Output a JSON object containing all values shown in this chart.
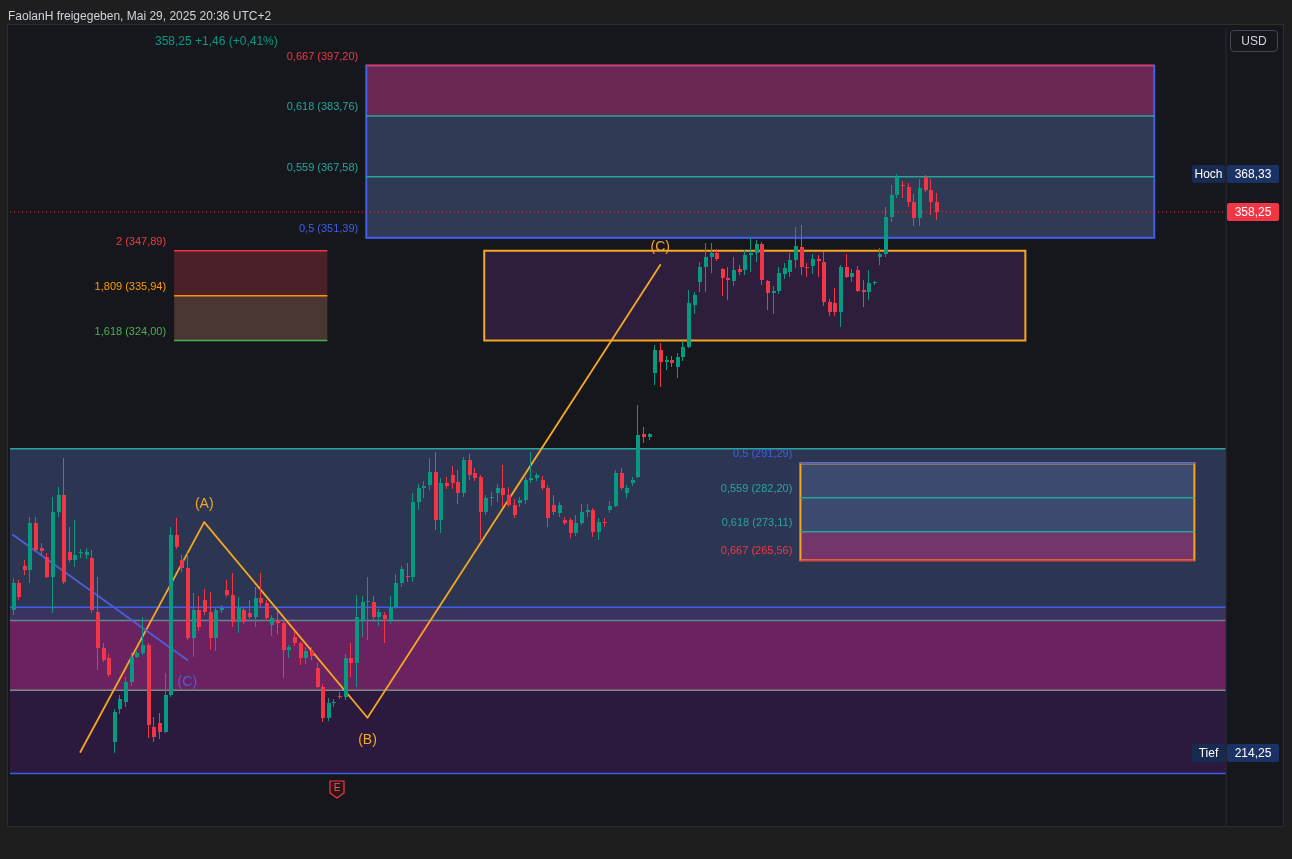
{
  "chart_data": {
    "type": "candlestick",
    "title": "FaolanH freigegeben, Mai 29, 2025 20:36 UTC+2",
    "categories": [
      null,
      null,
      null,
      null,
      null,
      null,
      null,
      null,
      null,
      null,
      null,
      null,
      null,
      null,
      null,
      null,
      null,
      null,
      null,
      null,
      null,
      null,
      null,
      null,
      null,
      null,
      null,
      null,
      null,
      null,
      null,
      null,
      null,
      null,
      null,
      null,
      null,
      null,
      null,
      null,
      null,
      null,
      null,
      null,
      null,
      null,
      null,
      null,
      null,
      null,
      null,
      null,
      null,
      null,
      null,
      null,
      null,
      null,
      null,
      null,
      null,
      null,
      null,
      null,
      null,
      null,
      null,
      null,
      null,
      null,
      null,
      null,
      null,
      null,
      null,
      null,
      null,
      null,
      null,
      null,
      null,
      null,
      null,
      null,
      null,
      null,
      null,
      null,
      null,
      null,
      null,
      null,
      null,
      null,
      null,
      null,
      null,
      null,
      null,
      null,
      null,
      null,
      null,
      null,
      null,
      null,
      null,
      null,
      null,
      null,
      null,
      null,
      null,
      null,
      null,
      null,
      null,
      null,
      null,
      null,
      null,
      null,
      null,
      null,
      null,
      null,
      null,
      null,
      null,
      null,
      null,
      null,
      null,
      null,
      null,
      null,
      null,
      null,
      null,
      null,
      null,
      null,
      null,
      null,
      null,
      null,
      null,
      null,
      null,
      null,
      null,
      null,
      null,
      null,
      null,
      null,
      null,
      null,
      null,
      null,
      null,
      null,
      null,
      null,
      null,
      null,
      null,
      null,
      null,
      null,
      null,
      null,
      null,
      null,
      null,
      null,
      null,
      null,
      null,
      null,
      null,
      null,
      null,
      null,
      null,
      null,
      null,
      null,
      null,
      null,
      null,
      null,
      null,
      null,
      null,
      null,
      null,
      null,
      null,
      null,
      null,
      null,
      null,
      null,
      null,
      null,
      null,
      null,
      null,
      null,
      null,
      null,
      null,
      null,
      null,
      null
    ],
    "ohlc": [
      [
        252.3,
        260.8,
        251.0,
        259.5
      ],
      [
        259.5,
        260.3,
        254.9,
        255.8
      ],
      [
        264.0,
        265.6,
        261.6,
        262.9
      ],
      [
        262.9,
        277.0,
        259.5,
        275.5
      ],
      [
        275.5,
        277.0,
        267.7,
        268.3
      ],
      [
        268.8,
        270.0,
        267.0,
        268.0
      ],
      [
        266.4,
        267.5,
        260.8,
        261.1
      ],
      [
        261.1,
        282.4,
        251.5,
        278.4
      ],
      [
        278.4,
        285.0,
        277.0,
        282.9
      ],
      [
        282.9,
        292.8,
        259.2,
        259.8
      ],
      [
        267.7,
        274.4,
        265.1,
        265.6
      ],
      [
        265.6,
        276.3,
        263.8,
        266.9
      ],
      [
        267.5,
        268.5,
        266.0,
        267.7
      ],
      [
        266.9,
        268.8,
        265.9,
        267.7
      ],
      [
        266.1,
        268.3,
        251.5,
        252.3
      ],
      [
        251.8,
        261.1,
        236.3,
        242.2
      ],
      [
        242.2,
        243.5,
        238.5,
        239.0
      ],
      [
        239.5,
        240.5,
        234.5,
        235.0
      ],
      [
        217.2,
        226.0,
        214.25,
        225.2
      ],
      [
        226.0,
        229.8,
        224.6,
        228.6
      ],
      [
        227.8,
        234.4,
        226.5,
        233.2
      ],
      [
        233.2,
        241.0,
        232.0,
        239.8
      ],
      [
        239.8,
        241.5,
        239.5,
        240.9
      ],
      [
        240.9,
        250.5,
        240.3,
        243.0
      ],
      [
        243.0,
        243.5,
        218.2,
        221.8
      ],
      [
        221.2,
        223.8,
        217.2,
        218.6
      ],
      [
        222.3,
        225.0,
        218.0,
        219.9
      ],
      [
        219.9,
        235.6,
        219.6,
        229.7
      ],
      [
        229.7,
        274.4,
        229.2,
        272.3
      ],
      [
        272.3,
        276.8,
        268.5,
        269.1
      ],
      [
        265.6,
        267.0,
        262.5,
        263.5
      ],
      [
        263.5,
        267.5,
        244.3,
        244.9
      ],
      [
        244.9,
        256.8,
        239.8,
        252.3
      ],
      [
        252.3,
        255.9,
        246.7,
        247.8
      ],
      [
        255.0,
        258.0,
        251.0,
        251.8
      ],
      [
        251.8,
        257.1,
        241.7,
        244.9
      ],
      [
        244.9,
        253.0,
        241.5,
        252.3
      ],
      [
        252.3,
        253.5,
        251.5,
        252.8
      ],
      [
        257.6,
        260.3,
        255.8,
        256.3
      ],
      [
        256.3,
        262.2,
        247.8,
        249.1
      ],
      [
        249.1,
        255.8,
        246.2,
        252.8
      ],
      [
        252.3,
        253.0,
        248.5,
        249.1
      ],
      [
        251.5,
        255.0,
        250.0,
        250.4
      ],
      [
        250.4,
        258.4,
        247.8,
        255.5
      ],
      [
        255.5,
        262.2,
        253.1,
        254.2
      ],
      [
        254.2,
        255.0,
        249.3,
        250.2
      ],
      [
        248.3,
        251.0,
        245.5,
        250.2
      ],
      [
        249.7,
        252.0,
        246.0,
        248.8
      ],
      [
        248.8,
        249.5,
        234.2,
        241.7
      ],
      [
        241.7,
        243.0,
        239.5,
        242.5
      ],
      [
        245.1,
        246.5,
        242.8,
        243.5
      ],
      [
        243.5,
        243.8,
        237.7,
        239.5
      ],
      [
        239.5,
        242.5,
        238.0,
        241.4
      ],
      [
        241.4,
        242.5,
        239.0,
        240.0
      ],
      [
        236.9,
        238.2,
        231.5,
        231.8
      ],
      [
        231.8,
        232.5,
        222.5,
        223.6
      ],
      [
        223.6,
        229.0,
        222.8,
        227.6
      ],
      [
        227.6,
        228.5,
        226.5,
        227.9
      ],
      [
        229.4,
        230.5,
        228.5,
        229.2
      ],
      [
        229.2,
        240.5,
        228.3,
        239.5
      ],
      [
        239.5,
        243.5,
        234.5,
        238.2
      ],
      [
        238.2,
        256.3,
        231.8,
        250.4
      ],
      [
        249.7,
        256.0,
        245.0,
        254.4
      ],
      [
        254.4,
        261.0,
        244.3,
        254.6
      ],
      [
        254.4,
        256.0,
        249.5,
        250.4
      ],
      [
        250.4,
        252.5,
        248.0,
        251.8
      ],
      [
        251.0,
        251.8,
        243.5,
        250.0
      ],
      [
        249.7,
        256.0,
        248.5,
        253.1
      ],
      [
        253.1,
        262.0,
        252.5,
        259.5
      ],
      [
        259.5,
        264.0,
        258.5,
        263.2
      ],
      [
        261.3,
        264.8,
        259.8,
        261.0
      ],
      [
        261.1,
        283.4,
        259.8,
        281.0
      ],
      [
        281.0,
        285.7,
        279.0,
        284.8
      ],
      [
        284.8,
        286.5,
        282.0,
        285.4
      ],
      [
        285.6,
        292.8,
        284.2,
        289.0
      ],
      [
        289.0,
        294.4,
        273.6,
        276.3
      ],
      [
        276.3,
        287.5,
        272.8,
        286.1
      ],
      [
        286.1,
        287.8,
        284.5,
        285.3
      ],
      [
        288.2,
        290.5,
        284.5,
        286.1
      ],
      [
        286.4,
        289.5,
        280.5,
        283.4
      ],
      [
        283.4,
        293.1,
        282.4,
        292.2
      ],
      [
        292.2,
        293.8,
        287.0,
        288.2
      ],
      [
        288.8,
        290.0,
        286.5,
        287.5
      ],
      [
        287.7,
        288.2,
        270.9,
        278.4
      ],
      [
        278.4,
        283.0,
        277.5,
        282.1
      ],
      [
        282.1,
        283.6,
        280.0,
        282.4
      ],
      [
        283.4,
        285.7,
        281.0,
        284.8
      ],
      [
        284.8,
        290.9,
        279.7,
        283.0
      ],
      [
        282.9,
        285.0,
        279.7,
        280.2
      ],
      [
        280.2,
        281.8,
        276.8,
        277.6
      ],
      [
        280.8,
        282.5,
        279.8,
        281.6
      ],
      [
        281.6,
        287.8,
        280.5,
        286.9
      ],
      [
        286.9,
        294.4,
        286.1,
        287.4
      ],
      [
        287.4,
        288.8,
        286.5,
        288.2
      ],
      [
        286.9,
        288.0,
        284.2,
        284.8
      ],
      [
        284.8,
        285.5,
        274.4,
        276.8
      ],
      [
        280.2,
        283.0,
        277.5,
        278.4
      ],
      [
        278.1,
        281.0,
        277.0,
        280.2
      ],
      [
        276.3,
        277.0,
        274.8,
        275.5
      ],
      [
        276.3,
        276.8,
        271.5,
        272.8
      ],
      [
        272.8,
        277.5,
        272.0,
        275.5
      ],
      [
        275.5,
        280.5,
        275.0,
        278.4
      ],
      [
        278.4,
        280.5,
        277.0,
        279.0
      ],
      [
        278.9,
        279.5,
        271.8,
        273.1
      ],
      [
        273.1,
        276.8,
        270.9,
        275.8
      ],
      [
        275.8,
        276.8,
        274.5,
        275.6
      ],
      [
        279.0,
        281.3,
        278.0,
        279.9
      ],
      [
        280.0,
        289.6,
        279.7,
        288.8
      ],
      [
        288.8,
        290.0,
        284.2,
        284.8
      ],
      [
        283.5,
        285.5,
        282.0,
        284.8
      ],
      [
        286.1,
        287.8,
        285.3,
        286.9
      ],
      [
        287.7,
        306.8,
        287.4,
        298.9
      ],
      [
        299.2,
        301.0,
        296.8,
        298.4
      ],
      [
        298.4,
        299.5,
        297.5,
        299.2
      ],
      [
        315.4,
        322.8,
        312.2,
        321.5
      ],
      [
        321.5,
        323.4,
        311.7,
        318.3
      ],
      [
        318.3,
        320.0,
        316.2,
        318.8
      ],
      [
        318.8,
        320.0,
        317.0,
        318.0
      ],
      [
        317.0,
        320.7,
        314.1,
        319.6
      ],
      [
        319.6,
        324.0,
        318.5,
        322.3
      ],
      [
        322.3,
        337.5,
        322.0,
        334.0
      ],
      [
        333.5,
        337.0,
        331.2,
        336.1
      ],
      [
        339.6,
        344.9,
        336.9,
        343.6
      ],
      [
        343.6,
        350.0,
        336.9,
        346.2
      ],
      [
        346.2,
        350.0,
        342.0,
        347.3
      ],
      [
        347.3,
        348.5,
        345.2,
        345.7
      ],
      [
        343.0,
        343.3,
        335.8,
        340.6
      ],
      [
        340.6,
        343.6,
        334.8,
        340.0
      ],
      [
        339.8,
        346.2,
        338.5,
        342.8
      ],
      [
        343.0,
        344.0,
        341.5,
        342.2
      ],
      [
        342.8,
        348.1,
        341.5,
        346.8
      ],
      [
        346.8,
        351.3,
        342.2,
        347.3
      ],
      [
        347.3,
        350.7,
        345.0,
        349.7
      ],
      [
        349.7,
        350.2,
        338.8,
        340.1
      ],
      [
        339.8,
        340.1,
        332.1,
        336.6
      ],
      [
        336.6,
        338.5,
        331.0,
        337.1
      ],
      [
        337.2,
        343.6,
        336.4,
        342.0
      ],
      [
        341.7,
        344.6,
        340.4,
        343.3
      ],
      [
        342.2,
        347.3,
        341.0,
        345.4
      ],
      [
        345.4,
        354.2,
        343.3,
        349.2
      ],
      [
        348.9,
        354.8,
        341.4,
        343.6
      ],
      [
        343.6,
        344.6,
        340.9,
        343.3
      ],
      [
        343.8,
        347.0,
        341.7,
        345.7
      ],
      [
        345.7,
        346.8,
        340.9,
        345.2
      ],
      [
        344.9,
        347.5,
        333.2,
        334.3
      ],
      [
        334.3,
        335.0,
        330.5,
        331.6
      ],
      [
        334.0,
        338.0,
        330.5,
        331.6
      ],
      [
        331.6,
        344.1,
        327.6,
        343.6
      ],
      [
        343.6,
        347.0,
        340.6,
        340.9
      ],
      [
        340.9,
        343.0,
        339.6,
        342.0
      ],
      [
        342.8,
        343.8,
        336.9,
        337.2
      ],
      [
        337.5,
        340.1,
        332.9,
        337.0
      ],
      [
        336.9,
        342.8,
        334.8,
        339.3
      ],
      [
        339.3,
        339.8,
        338.8,
        339.6
      ],
      [
        346.2,
        348.6,
        344.0,
        347.0
      ],
      [
        347.0,
        359.5,
        346.2,
        356.9
      ],
      [
        356.9,
        365.5,
        355.5,
        362.7
      ],
      [
        362.7,
        368.33,
        361.9,
        367.5
      ],
      [
        365.4,
        366.5,
        362.0,
        365.1
      ],
      [
        364.9,
        366.0,
        359.5,
        360.9
      ],
      [
        360.9,
        363.0,
        354.5,
        356.6
      ],
      [
        356.6,
        366.9,
        354.5,
        364.6
      ],
      [
        367.5,
        368.0,
        363.5,
        364.1
      ],
      [
        364.1,
        367.0,
        357.5,
        360.9
      ],
      [
        360.9,
        363.3,
        356.1,
        358.25
      ],
      null,
      null,
      null,
      null,
      null,
      null,
      null,
      null,
      null,
      null,
      null,
      null,
      null,
      null,
      null,
      null,
      null,
      null,
      null,
      null,
      null,
      null,
      null,
      null,
      null,
      null,
      null,
      null,
      null,
      null,
      null,
      null,
      null,
      null,
      null,
      null,
      null,
      null,
      null,
      null,
      null,
      null,
      null,
      null,
      null,
      null,
      null,
      null,
      null,
      null,
      null
    ],
    "series": [
      {
        "type": "line",
        "color": "#f5a623",
        "values": [
          null,
          null,
          null,
          null,
          null,
          null,
          null,
          null,
          null,
          null,
          null,
          null,
          214.5,
          null,
          null,
          null,
          null,
          null,
          null,
          null,
          null,
          null,
          null,
          null,
          null,
          null,
          null,
          null,
          null,
          null,
          null,
          null,
          null,
          null,
          275.7,
          null,
          null,
          null,
          null,
          null,
          null,
          null,
          null,
          null,
          null,
          null,
          null,
          null,
          null,
          null,
          null,
          null,
          null,
          null,
          null,
          null,
          null,
          null,
          null,
          null,
          null,
          null,
          null,
          223.6,
          null,
          null,
          null,
          null,
          null,
          null,
          null,
          null,
          null,
          null,
          null,
          null,
          null,
          null,
          null,
          null,
          null,
          null,
          null,
          null,
          null,
          null,
          null,
          null,
          null,
          null,
          null,
          null,
          null,
          null,
          null,
          null,
          null,
          null,
          null,
          null,
          null,
          null,
          null,
          null,
          null,
          null,
          null,
          null,
          null,
          null,
          null,
          null,
          null,
          null,
          null,
          344.1,
          null,
          null,
          null,
          null,
          null,
          null,
          null,
          null,
          null,
          null,
          null,
          null,
          null,
          null,
          null,
          null,
          null,
          null,
          null,
          null,
          null,
          null,
          null,
          null,
          null,
          null,
          null,
          null,
          null,
          null,
          null,
          null,
          null,
          null,
          null,
          null,
          null,
          null,
          null,
          null,
          null,
          null,
          null,
          null,
          null,
          null,
          null,
          null,
          null,
          null,
          null,
          null,
          null,
          null,
          null,
          null,
          null,
          null,
          null,
          null,
          null,
          null,
          null,
          null,
          null,
          null,
          null,
          null,
          null,
          null,
          null,
          null,
          null,
          null,
          null,
          null,
          null,
          null,
          null,
          null,
          null,
          null,
          null,
          null,
          null,
          null,
          null,
          null,
          null,
          null,
          null,
          null,
          null,
          null,
          null,
          null,
          null,
          null,
          null,
          null
        ]
      },
      {
        "type": "line",
        "color": "#4c5fd6",
        "values": [
          272.3,
          null,
          null,
          null,
          null,
          null,
          null,
          null,
          null,
          null,
          null,
          null,
          null,
          null,
          null,
          null,
          null,
          null,
          null,
          null,
          null,
          null,
          null,
          null,
          null,
          null,
          null,
          null,
          null,
          null,
          null,
          239.0,
          null,
          null,
          null,
          null,
          null,
          null,
          null,
          null,
          null,
          null,
          null,
          null,
          null,
          null,
          null,
          null,
          null,
          null,
          null,
          null,
          null,
          null,
          null,
          null,
          null,
          null,
          null,
          null,
          null,
          null,
          null,
          null,
          null,
          null,
          null,
          null,
          null,
          null,
          null,
          null,
          null,
          null,
          null,
          null,
          null,
          null,
          null,
          null,
          null,
          null,
          null,
          null,
          null,
          null,
          null,
          null,
          null,
          null,
          null,
          null,
          null,
          null,
          null,
          null,
          null,
          null,
          null,
          null,
          null,
          null,
          null,
          null,
          null,
          null,
          null,
          null,
          null,
          null,
          null,
          null,
          null,
          null,
          null,
          null,
          null,
          null,
          null,
          null,
          null,
          null,
          null,
          null,
          null,
          null,
          null,
          null,
          null,
          null,
          null,
          null,
          null,
          null,
          null,
          null,
          null,
          null,
          null,
          null,
          null,
          null,
          null,
          null,
          null,
          null,
          null,
          null,
          null,
          null,
          null,
          null,
          null,
          null,
          null,
          null,
          null,
          null,
          null,
          null,
          null,
          null,
          null,
          null,
          null,
          null,
          null,
          null,
          null,
          null,
          null,
          null,
          null,
          null,
          null,
          null,
          null,
          null,
          null,
          null,
          null,
          null,
          null,
          null,
          null,
          null,
          null,
          null,
          null,
          null,
          null,
          null,
          null,
          null,
          null,
          null,
          null,
          null,
          null,
          null,
          null,
          null,
          null,
          null,
          null,
          null,
          null,
          null,
          null,
          null,
          null,
          null,
          null,
          null,
          null,
          null
        ]
      }
    ],
    "ylim": [
      194.8,
      407.2
    ],
    "yticks": [
      {
        "value": 368.33,
        "label": "368,33"
      },
      {
        "value": 358.25,
        "label": "358,25"
      },
      {
        "value": 214.25,
        "label": "214,25"
      }
    ],
    "tick_labels": "y",
    "ref_lines": [
      {
        "axis": "y",
        "value": 358.25,
        "color": "#f23645",
        "line_style": "dotted"
      },
      {
        "axis": "y",
        "value": 397.2,
        "label": "0,667 (397,20)",
        "color": "#f23645"
      },
      {
        "axis": "y",
        "value": 383.76,
        "label": "0,618 (383,76)",
        "color": "#26a69a"
      },
      {
        "axis": "y",
        "value": 367.58,
        "label": "0,559 (367,58)",
        "color": "#26a69a"
      },
      {
        "axis": "y",
        "value": 351.39,
        "label": "0,5 (351,39)",
        "color": "#3f5fe8"
      },
      {
        "axis": "y",
        "value": 347.89,
        "label": "2 (347,89)",
        "color": "#f23645"
      },
      {
        "axis": "y",
        "value": 335.94,
        "label": "1,809 (335,94)",
        "color": "#ff9800"
      },
      {
        "axis": "y",
        "value": 324.0,
        "label": "1,618 (324,00)",
        "color": "#4caf50"
      },
      {
        "axis": "y",
        "value": 295.2,
        "color": "#26a69a"
      },
      {
        "axis": "y",
        "value": 253.0,
        "color": "#3f5fe8"
      },
      {
        "axis": "y",
        "value": 249.5,
        "color": "#5f8a8c"
      },
      {
        "axis": "y",
        "value": 230.9,
        "color": "#7d8a80"
      },
      {
        "axis": "y",
        "value": 208.8,
        "color": "#3f5fe8"
      },
      {
        "axis": "y",
        "value": 291.29,
        "label": "0,5 (291,29)",
        "color": "#3f5fe8"
      },
      {
        "axis": "y",
        "value": 282.2,
        "label": "0,559 (282,20)",
        "color": "#26a69a"
      },
      {
        "axis": "y",
        "value": 273.11,
        "label": "0,618 (273,11)",
        "color": "#26a69a"
      },
      {
        "axis": "y",
        "value": 265.56,
        "label": "0,667 (265,56)",
        "color": "#f23645"
      }
    ],
    "bands": [
      {
        "axis": "y",
        "from": 253.0,
        "to": 295.2,
        "color": "#2c3652"
      },
      {
        "axis": "y",
        "from": 249.5,
        "to": 253.0,
        "color": "#3a335e"
      },
      {
        "axis": "y",
        "from": 230.9,
        "to": 249.5,
        "color": "#6a2260"
      },
      {
        "axis": "y",
        "from": 208.8,
        "to": 230.9,
        "color": "#2b1a3d"
      },
      {
        "axis": "y",
        "from": 383.76,
        "to": 397.2,
        "color": "#6b2853"
      },
      {
        "axis": "y",
        "from": 351.39,
        "to": 383.76,
        "color": "#303a55"
      },
      {
        "axis": "y",
        "from": 335.94,
        "to": 347.89,
        "color": "#4a2029"
      },
      {
        "axis": "y",
        "from": 324.0,
        "to": 335.94,
        "color": "#4a3632"
      },
      {
        "axis": "y",
        "from": 324.0,
        "to": 347.89,
        "color": "#2c1e3c"
      },
      {
        "axis": "y",
        "from": 273.11,
        "to": 291.29,
        "color": "#3d4b70"
      },
      {
        "axis": "y",
        "from": 265.56,
        "to": 273.11,
        "color": "#72366a"
      }
    ],
    "annotations": [
      "358,25 +1,46 (+0,41%)",
      "USD",
      {
        "text": "Hoch",
        "y": 368.33
      },
      {
        "text": "Tief",
        "y": 214.25
      },
      "(A)",
      "(B)",
      "(C)",
      "(C)",
      "E"
    ]
  }
}
